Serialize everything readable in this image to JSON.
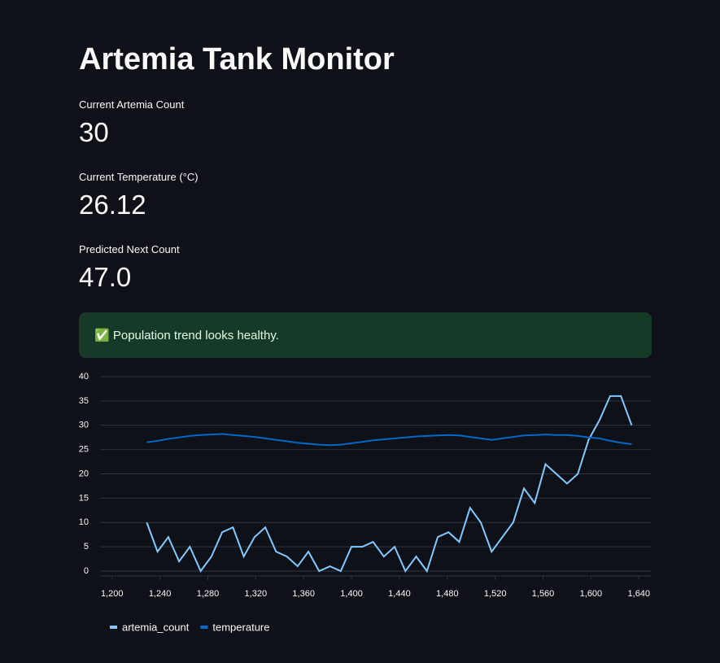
{
  "header": {
    "title": "Artemia Tank Monitor"
  },
  "metrics": [
    {
      "label": "Current Artemia Count",
      "value": "30"
    },
    {
      "label": "Current Temperature (°C)",
      "value": "26.12"
    },
    {
      "label": "Predicted Next Count",
      "value": "47.0"
    }
  ],
  "alert": {
    "text": "✅ Population trend looks healthy."
  },
  "chart_data": {
    "type": "line",
    "x": [
      1229,
      1238,
      1247,
      1256,
      1265,
      1274,
      1283,
      1292,
      1301,
      1310,
      1319,
      1328,
      1337,
      1346,
      1355,
      1364,
      1373,
      1382,
      1391,
      1400,
      1409,
      1418,
      1427,
      1436,
      1445,
      1454,
      1463,
      1472,
      1481,
      1490,
      1499,
      1508,
      1517,
      1526,
      1535,
      1544,
      1553,
      1562,
      1571,
      1580,
      1589,
      1598,
      1607,
      1616,
      1625,
      1634
    ],
    "series": [
      {
        "name": "artemia_count",
        "color": "#83c9ff",
        "values": [
          10,
          4,
          7,
          2,
          5,
          0,
          3,
          8,
          9,
          3,
          7,
          9,
          4,
          3,
          1,
          4,
          0,
          1,
          0,
          5,
          5,
          6,
          3,
          5,
          0,
          3,
          0,
          7,
          8,
          6,
          13,
          10,
          4,
          7,
          10,
          17,
          14,
          22,
          20,
          18,
          20,
          27,
          31,
          36,
          36,
          30
        ]
      },
      {
        "name": "temperature",
        "color": "#0068c9",
        "values": [
          26.5,
          26.8,
          27.2,
          27.5,
          27.8,
          28,
          28.1,
          28.2,
          28,
          27.8,
          27.6,
          27.3,
          27,
          26.7,
          26.4,
          26.2,
          26,
          25.9,
          26,
          26.3,
          26.6,
          26.9,
          27.1,
          27.3,
          27.5,
          27.7,
          27.8,
          27.9,
          28,
          27.9,
          27.6,
          27.3,
          27,
          27.3,
          27.6,
          27.9,
          28,
          28.1,
          28,
          28,
          27.8,
          27.5,
          27.3,
          26.8,
          26.4,
          26.1
        ]
      }
    ],
    "xlim": [
      1190,
      1650
    ],
    "ylim": [
      -1,
      40
    ],
    "xticks": [
      {
        "value": 1200,
        "label": "1,200"
      },
      {
        "value": 1240,
        "label": "1,240"
      },
      {
        "value": 1280,
        "label": "1,280"
      },
      {
        "value": 1320,
        "label": "1,320"
      },
      {
        "value": 1360,
        "label": "1,360"
      },
      {
        "value": 1400,
        "label": "1,400"
      },
      {
        "value": 1440,
        "label": "1,440"
      },
      {
        "value": 1480,
        "label": "1,480"
      },
      {
        "value": 1520,
        "label": "1,520"
      },
      {
        "value": 1560,
        "label": "1,560"
      },
      {
        "value": 1600,
        "label": "1,600"
      },
      {
        "value": 1640,
        "label": "1,640"
      }
    ],
    "yticks": [
      0,
      5,
      10,
      15,
      20,
      25,
      30,
      35,
      40
    ],
    "grid": true,
    "legend": "bottom"
  }
}
